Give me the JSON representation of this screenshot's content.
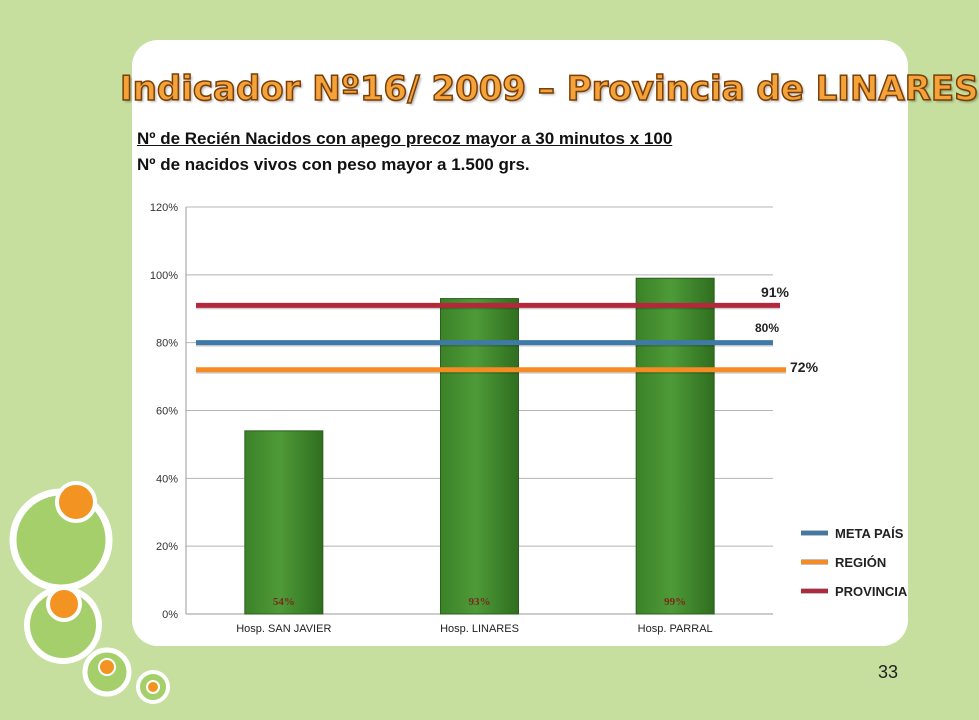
{
  "slide": {
    "title": "Indicador Nº16/ 2009 – Provincia de LINARES",
    "formula_numerator": "Nº de Recién Nacidos con  apego precoz mayor a 30 minutos x 100",
    "formula_denominator": "Nº de nacidos vivos con peso mayor a 1.500 grs.",
    "page_number": "33"
  },
  "colors": {
    "bar": "#4e9a38",
    "meta_pais": "#3f79a8",
    "region": "#f58b22",
    "provincia": "#b3283a"
  },
  "chart_data": {
    "type": "bar",
    "categories": [
      "Hosp. SAN JAVIER",
      "Hosp. LINARES",
      "Hosp. PARRAL"
    ],
    "values": [
      54,
      93,
      99
    ],
    "data_labels": [
      "54%",
      "93%",
      "99%"
    ],
    "y_ticks": [
      "0%",
      "20%",
      "40%",
      "60%",
      "80%",
      "100%",
      "120%"
    ],
    "ylim": [
      0,
      120
    ],
    "grid": true,
    "reference_lines": [
      {
        "name": "META PAÍS",
        "value": 80,
        "label": "80%",
        "color": "#3f79a8"
      },
      {
        "name": "REGIÓN",
        "value": 72,
        "label": "72%",
        "color": "#f58b22"
      },
      {
        "name": "PROVINCIA",
        "value": 91,
        "label": "91%",
        "color": "#b3283a"
      }
    ],
    "legend": [
      "META PAÍS",
      "REGIÓN",
      "PROVINCIA"
    ],
    "legend_position": "right"
  }
}
